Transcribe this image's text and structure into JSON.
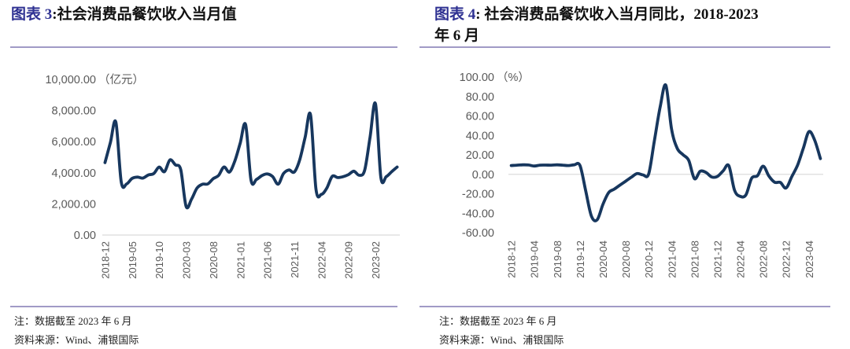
{
  "panels": [
    {
      "fig_label": "图表 3",
      "title_rest": ":社会消费品餐饮收入当月值",
      "note": "注：数据截至 2023 年 6 月",
      "source": "资料来源：Wind、浦银国际"
    },
    {
      "fig_label": "图表 4",
      "title_rest": ": 社会消费品餐饮收入当月同比，2018-2023 年 6 月",
      "note": "注：数据截至 2023 年 6 月",
      "source": "资料来源：Wind、浦银国际"
    }
  ],
  "chart_data": [
    {
      "type": "line",
      "title": "社会消费品餐饮收入当月值",
      "ylabel": "亿元",
      "unit_label": "（亿元）",
      "ylim": [
        0,
        10000
      ],
      "ytick_step": 2000,
      "ytick_labels": [
        "10,000.00",
        "8,000.00",
        "6,000.00",
        "4,000.00",
        "2,000.00",
        "0.00"
      ],
      "xtick_interval": 5,
      "xtick_labels": [
        "2018-12",
        "2019-05",
        "2019-10",
        "2020-03",
        "2020-08",
        "2021-01",
        "2021-06",
        "2021-11",
        "2022-04",
        "2022-09",
        "2023-02"
      ],
      "categories": [
        "2018-12",
        "2019-01",
        "2019-02",
        "2019-03",
        "2019-04",
        "2019-05",
        "2019-06",
        "2019-07",
        "2019-08",
        "2019-09",
        "2019-10",
        "2019-11",
        "2019-12",
        "2020-01",
        "2020-02",
        "2020-03",
        "2020-04",
        "2020-05",
        "2020-06",
        "2020-07",
        "2020-08",
        "2020-09",
        "2020-10",
        "2020-11",
        "2020-12",
        "2021-01",
        "2021-02",
        "2021-03",
        "2021-04",
        "2021-05",
        "2021-06",
        "2021-07",
        "2021-08",
        "2021-09",
        "2021-10",
        "2021-11",
        "2021-12",
        "2022-01",
        "2022-02",
        "2022-03",
        "2022-04",
        "2022-05",
        "2022-06",
        "2022-07",
        "2022-08",
        "2022-09",
        "2022-10",
        "2022-11",
        "2022-12",
        "2023-01",
        "2023-02",
        "2023-03",
        "2023-04",
        "2023-05",
        "2023-06"
      ],
      "values": [
        4650,
        5950,
        7251,
        3393,
        3281,
        3637,
        3723,
        3658,
        3857,
        3947,
        4367,
        4071,
        4825,
        4510,
        4194,
        1832,
        2307,
        3013,
        3262,
        3282,
        3619,
        3832,
        4372,
        4047,
        4760,
        5920,
        7085,
        3511,
        3576,
        3816,
        3923,
        3751,
        3266,
        3950,
        4180,
        4050,
        4841,
        6280,
        7718,
        2935,
        2609,
        3012,
        3766,
        3694,
        3748,
        3880,
        4099,
        3837,
        4157,
        6290,
        8429,
        3707,
        3751,
        4070,
        4371
      ],
      "zero_gridline": true,
      "grid_on": false,
      "legend": "none",
      "line_color": "#17375E",
      "grid_color": "#D9D9D9",
      "tick_color": "#595959"
    },
    {
      "type": "line",
      "title": "社会消费品餐饮收入当月同比，2018-2023 年 6 月",
      "ylabel": "%",
      "unit_label": "（%）",
      "ylim": [
        -60,
        100
      ],
      "ytick_step": 20,
      "ytick_labels": [
        "100.00",
        "80.00",
        "60.00",
        "40.00",
        "20.00",
        "0.00",
        "-20.00",
        "-40.00",
        "-60.00"
      ],
      "xtick_interval": 4,
      "xtick_labels": [
        "2018-12",
        "2019-04",
        "2019-08",
        "2019-12",
        "2020-04",
        "2020-08",
        "2020-12",
        "2021-04",
        "2021-08",
        "2021-12",
        "2022-04",
        "2022-08",
        "2022-12",
        "2023-04"
      ],
      "categories": [
        "2018-12",
        "2019-01",
        "2019-02",
        "2019-03",
        "2019-04",
        "2019-05",
        "2019-06",
        "2019-07",
        "2019-08",
        "2019-09",
        "2019-10",
        "2019-11",
        "2019-12",
        "2020-01",
        "2020-02",
        "2020-03",
        "2020-04",
        "2020-05",
        "2020-06",
        "2020-07",
        "2020-08",
        "2020-09",
        "2020-10",
        "2020-11",
        "2020-12",
        "2021-01",
        "2021-02",
        "2021-03",
        "2021-04",
        "2021-05",
        "2021-06",
        "2021-07",
        "2021-08",
        "2021-09",
        "2021-10",
        "2021-11",
        "2021-12",
        "2022-01",
        "2022-02",
        "2022-03",
        "2022-04",
        "2022-05",
        "2022-06",
        "2022-07",
        "2022-08",
        "2022-09",
        "2022-10",
        "2022-11",
        "2022-12",
        "2023-01",
        "2023-02",
        "2023-03",
        "2023-04",
        "2023-05",
        "2023-06"
      ],
      "values": [
        9.0,
        9.4,
        9.7,
        9.6,
        8.5,
        9.4,
        9.5,
        9.4,
        9.7,
        9.4,
        9.0,
        9.7,
        9.1,
        -17.0,
        -43.1,
        -46.8,
        -31.1,
        -18.9,
        -15.2,
        -11.0,
        -7.0,
        -2.9,
        0.8,
        -0.6,
        0.4,
        34.7,
        68.9,
        91.6,
        46.4,
        26.6,
        20.2,
        14.3,
        -4.5,
        3.1,
        2.0,
        -2.7,
        -2.2,
        3.4,
        8.9,
        -16.4,
        -22.7,
        -21.1,
        -4.0,
        -1.5,
        8.4,
        -1.7,
        -8.1,
        -8.4,
        -14.1,
        -2.5,
        9.2,
        26.3,
        43.8,
        35.1,
        16.1
      ],
      "zero_gridline": true,
      "grid_on": false,
      "legend": "none",
      "line_color": "#17375E",
      "grid_color": "#D9D9D9",
      "tick_color": "#595959"
    }
  ],
  "colors": {
    "fig_label_blue": "#2E3192",
    "title_text": "#111111",
    "rule_purple": "#A19AC6",
    "series_navy": "#17375E",
    "axis_gray": "#595959",
    "gridline_gray": "#D9D9D9"
  }
}
